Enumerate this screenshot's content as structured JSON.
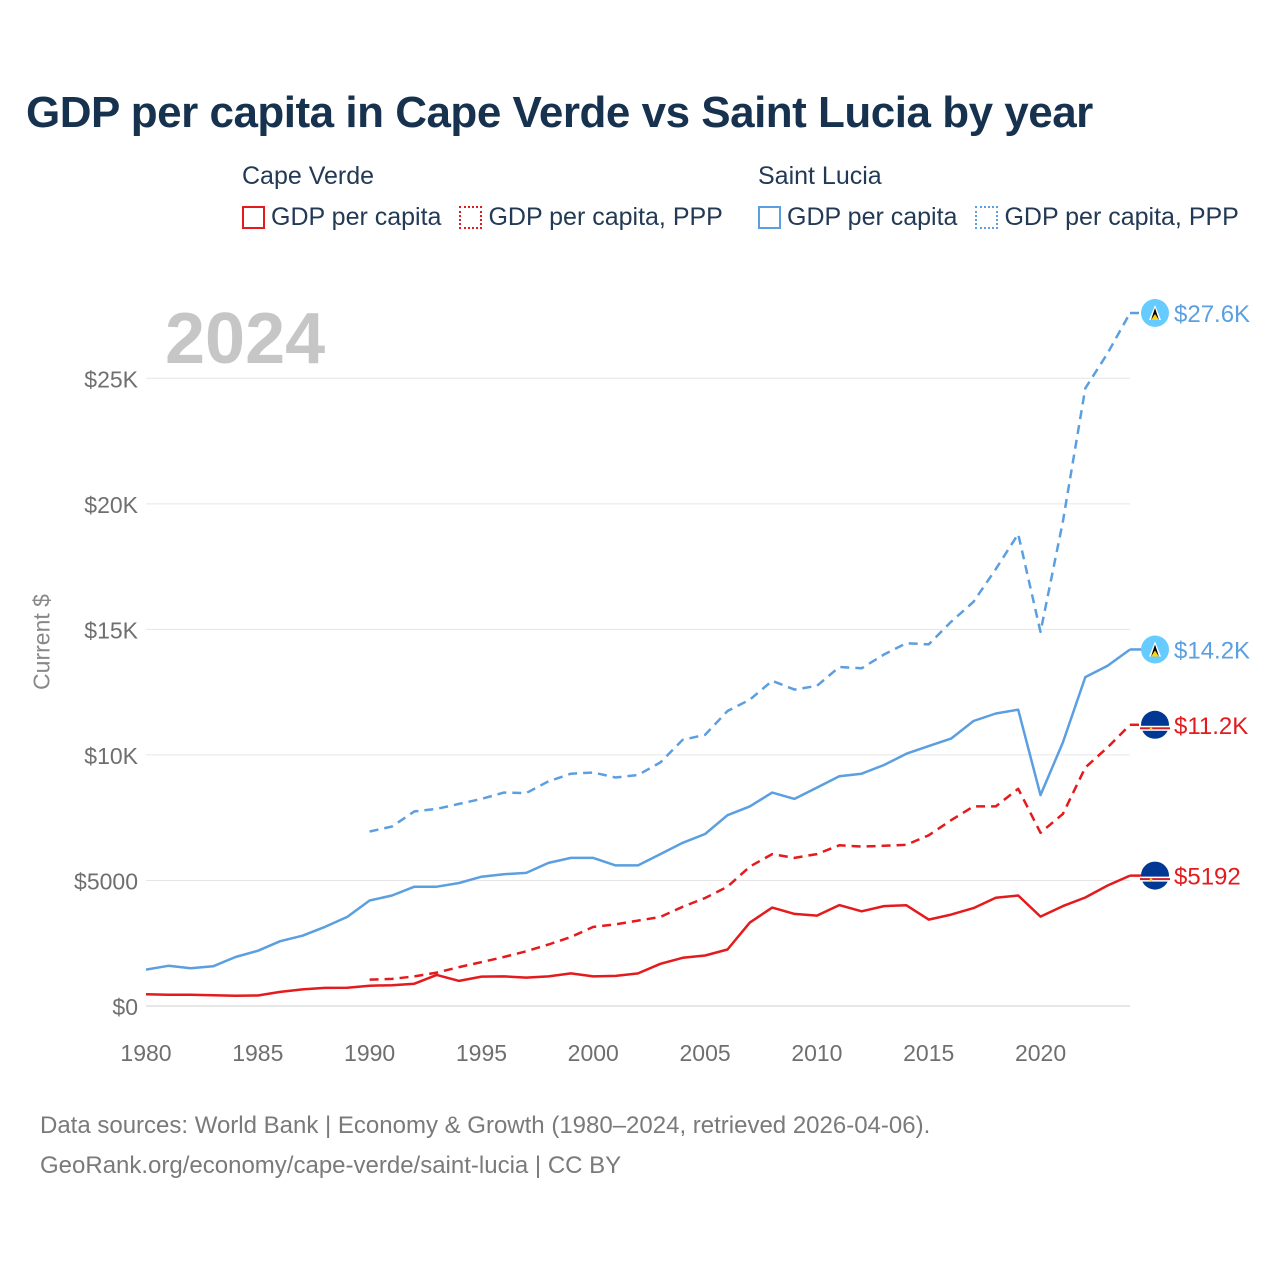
{
  "title": "GDP per capita in Cape Verde vs Saint Lucia by year",
  "legend": {
    "groups": [
      {
        "country": "Cape Verde",
        "color": "#e41a1c",
        "items": [
          {
            "label": "GDP per capita",
            "style": "solid"
          },
          {
            "label": "GDP per capita, PPP",
            "style": "dotted"
          }
        ]
      },
      {
        "country": "Saint Lucia",
        "color": "#5b9fe0",
        "items": [
          {
            "label": "GDP per capita",
            "style": "solid"
          },
          {
            "label": "GDP per capita, PPP",
            "style": "dotted"
          }
        ]
      }
    ]
  },
  "year_label": "2024",
  "footer": {
    "line1": "Data sources: World Bank | Economy & Growth (1980–2024, retrieved 2026-04-06).",
    "line2": "GeoRank.org/economy/cape-verde/saint-lucia | CC BY"
  },
  "chart_data": {
    "type": "line",
    "title": "GDP per capita in Cape Verde vs Saint Lucia by year",
    "xlabel": "",
    "ylabel": "Current $",
    "xlim": [
      1980,
      2024
    ],
    "ylim": [
      0,
      27600
    ],
    "grid": true,
    "legend_position": "top",
    "x_ticks": [
      1980,
      1985,
      1990,
      1995,
      2000,
      2005,
      2010,
      2015,
      2020
    ],
    "y_ticks": [
      {
        "value": 0,
        "label": "$0"
      },
      {
        "value": 5000,
        "label": "$5000"
      },
      {
        "value": 10000,
        "label": "$10K"
      },
      {
        "value": 15000,
        "label": "$15K"
      },
      {
        "value": 20000,
        "label": "$20K"
      },
      {
        "value": 25000,
        "label": "$25K"
      }
    ],
    "series": [
      {
        "name": "Saint Lucia GDP per capita, PPP",
        "country": "Saint Lucia",
        "color": "#5b9fe0",
        "dash": "dashed",
        "end_label": "$27.6K",
        "x_start": 1990,
        "values": [
          6950,
          7150,
          7750,
          7850,
          8050,
          8250,
          8500,
          8480,
          8950,
          9250,
          9300,
          9100,
          9200,
          9700,
          10600,
          10800,
          11750,
          12200,
          12950,
          12600,
          12750,
          13500,
          13450,
          14000,
          14450,
          14400,
          15300,
          16100,
          17400,
          18800,
          14900,
          19300,
          24600,
          26000,
          27600
        ]
      },
      {
        "name": "Saint Lucia GDP per capita",
        "country": "Saint Lucia",
        "color": "#5b9fe0",
        "dash": "solid",
        "end_label": "$14.2K",
        "x_start": 1980,
        "values": [
          1450,
          1600,
          1500,
          1580,
          1950,
          2200,
          2580,
          2800,
          3150,
          3550,
          4200,
          4400,
          4750,
          4750,
          4900,
          5150,
          5250,
          5300,
          5700,
          5900,
          5900,
          5600,
          5600,
          6050,
          6500,
          6850,
          7600,
          7950,
          8500,
          8250,
          8700,
          9150,
          9250,
          9600,
          10050,
          10350,
          10650,
          11350,
          11650,
          11800,
          8400,
          10500,
          13100,
          13550,
          14200
        ]
      },
      {
        "name": "Cape Verde GDP per capita, PPP",
        "country": "Cape Verde",
        "color": "#e41a1c",
        "dash": "dashed",
        "end_label": "$11.2K",
        "x_start": 1990,
        "values": [
          1050,
          1080,
          1180,
          1330,
          1550,
          1750,
          1950,
          2180,
          2450,
          2750,
          3150,
          3250,
          3400,
          3550,
          3950,
          4300,
          4750,
          5550,
          6050,
          5900,
          6050,
          6400,
          6350,
          6380,
          6420,
          6800,
          7400,
          7950,
          7950,
          8650,
          6900,
          7650,
          9500,
          10300,
          11200
        ]
      },
      {
        "name": "Cape Verde GDP per capita",
        "country": "Cape Verde",
        "color": "#e41a1c",
        "dash": "solid",
        "end_label": "$5192",
        "x_start": 1980,
        "values": [
          470,
          450,
          450,
          430,
          410,
          420,
          560,
          660,
          720,
          730,
          810,
          830,
          890,
          1240,
          1000,
          1170,
          1180,
          1130,
          1180,
          1300,
          1180,
          1200,
          1300,
          1680,
          1920,
          2010,
          2250,
          3320,
          3920,
          3670,
          3600,
          4020,
          3770,
          3980,
          4010,
          3440,
          3640,
          3900,
          4310,
          4400,
          3560,
          3980,
          4320,
          4800,
          5192
        ]
      }
    ]
  }
}
